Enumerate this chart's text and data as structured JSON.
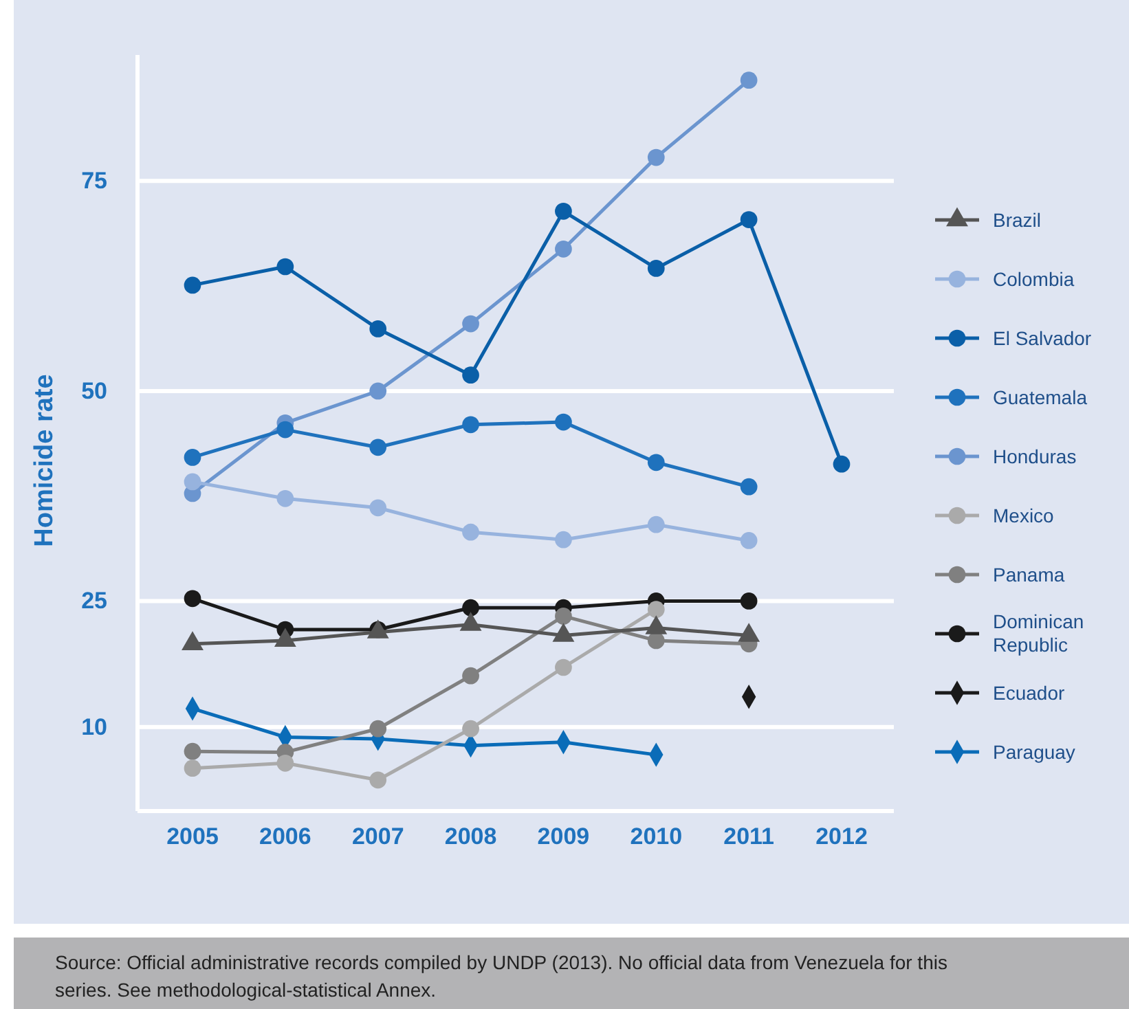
{
  "chart_data": {
    "type": "line",
    "ylabel": "Homicide rate",
    "categories": [
      "2005",
      "2006",
      "2007",
      "2008",
      "2009",
      "2010",
      "2011",
      "2012"
    ],
    "ylim": [
      0,
      90
    ],
    "yticks": [
      10,
      25,
      50,
      75
    ],
    "grid": "y",
    "legend": "right",
    "series": [
      {
        "name": "Brazil",
        "color": "#555555",
        "marker": "triangle",
        "values": [
          19.9,
          20.3,
          21.3,
          22.2,
          20.9,
          21.8,
          20.9,
          null
        ]
      },
      {
        "name": "Colombia",
        "color": "#97b3de",
        "marker": "circle",
        "values": [
          39.2,
          37.2,
          36.1,
          33.2,
          32.3,
          34.1,
          32.2,
          null
        ]
      },
      {
        "name": "El Salvador",
        "color": "#0a5fa8",
        "marker": "circle",
        "values": [
          62.6,
          64.8,
          57.4,
          51.9,
          71.4,
          64.6,
          70.4,
          41.3
        ]
      },
      {
        "name": "Guatemala",
        "color": "#1f72bd",
        "marker": "circle",
        "values": [
          42.1,
          45.4,
          43.3,
          46.0,
          46.3,
          41.5,
          38.6,
          null
        ]
      },
      {
        "name": "Honduras",
        "color": "#6b95cf",
        "marker": "circle",
        "values": [
          37.8,
          46.2,
          50.0,
          58.0,
          66.9,
          77.8,
          87.0,
          null
        ]
      },
      {
        "name": "Mexico",
        "color": "#aaaaaa",
        "marker": "circle",
        "values": [
          5.1,
          5.7,
          3.7,
          9.8,
          17.1,
          24.0,
          null,
          null
        ]
      },
      {
        "name": "Panama",
        "color": "#808080",
        "marker": "circle",
        "values": [
          7.1,
          7.0,
          9.8,
          16.1,
          23.2,
          20.3,
          19.9,
          null
        ]
      },
      {
        "name": "Dominican Republic",
        "color": "#1a1a1a",
        "marker": "circle",
        "values": [
          25.3,
          21.6,
          21.6,
          24.2,
          24.2,
          25.0,
          25.0,
          null
        ]
      },
      {
        "name": "Ecuador",
        "color": "#1a1a1a",
        "marker": "diamond",
        "values": [
          null,
          null,
          null,
          null,
          null,
          null,
          13.6,
          null
        ]
      },
      {
        "name": "Paraguay",
        "color": "#0a6cb8",
        "marker": "diamond",
        "values": [
          12.2,
          8.8,
          8.6,
          7.8,
          8.2,
          6.7,
          null,
          null
        ]
      }
    ],
    "annotations": [
      "Source: Official administrative records compiled by UNDP (2013). No official data from Venezuela for this series. See methodological-statistical Annex."
    ]
  }
}
